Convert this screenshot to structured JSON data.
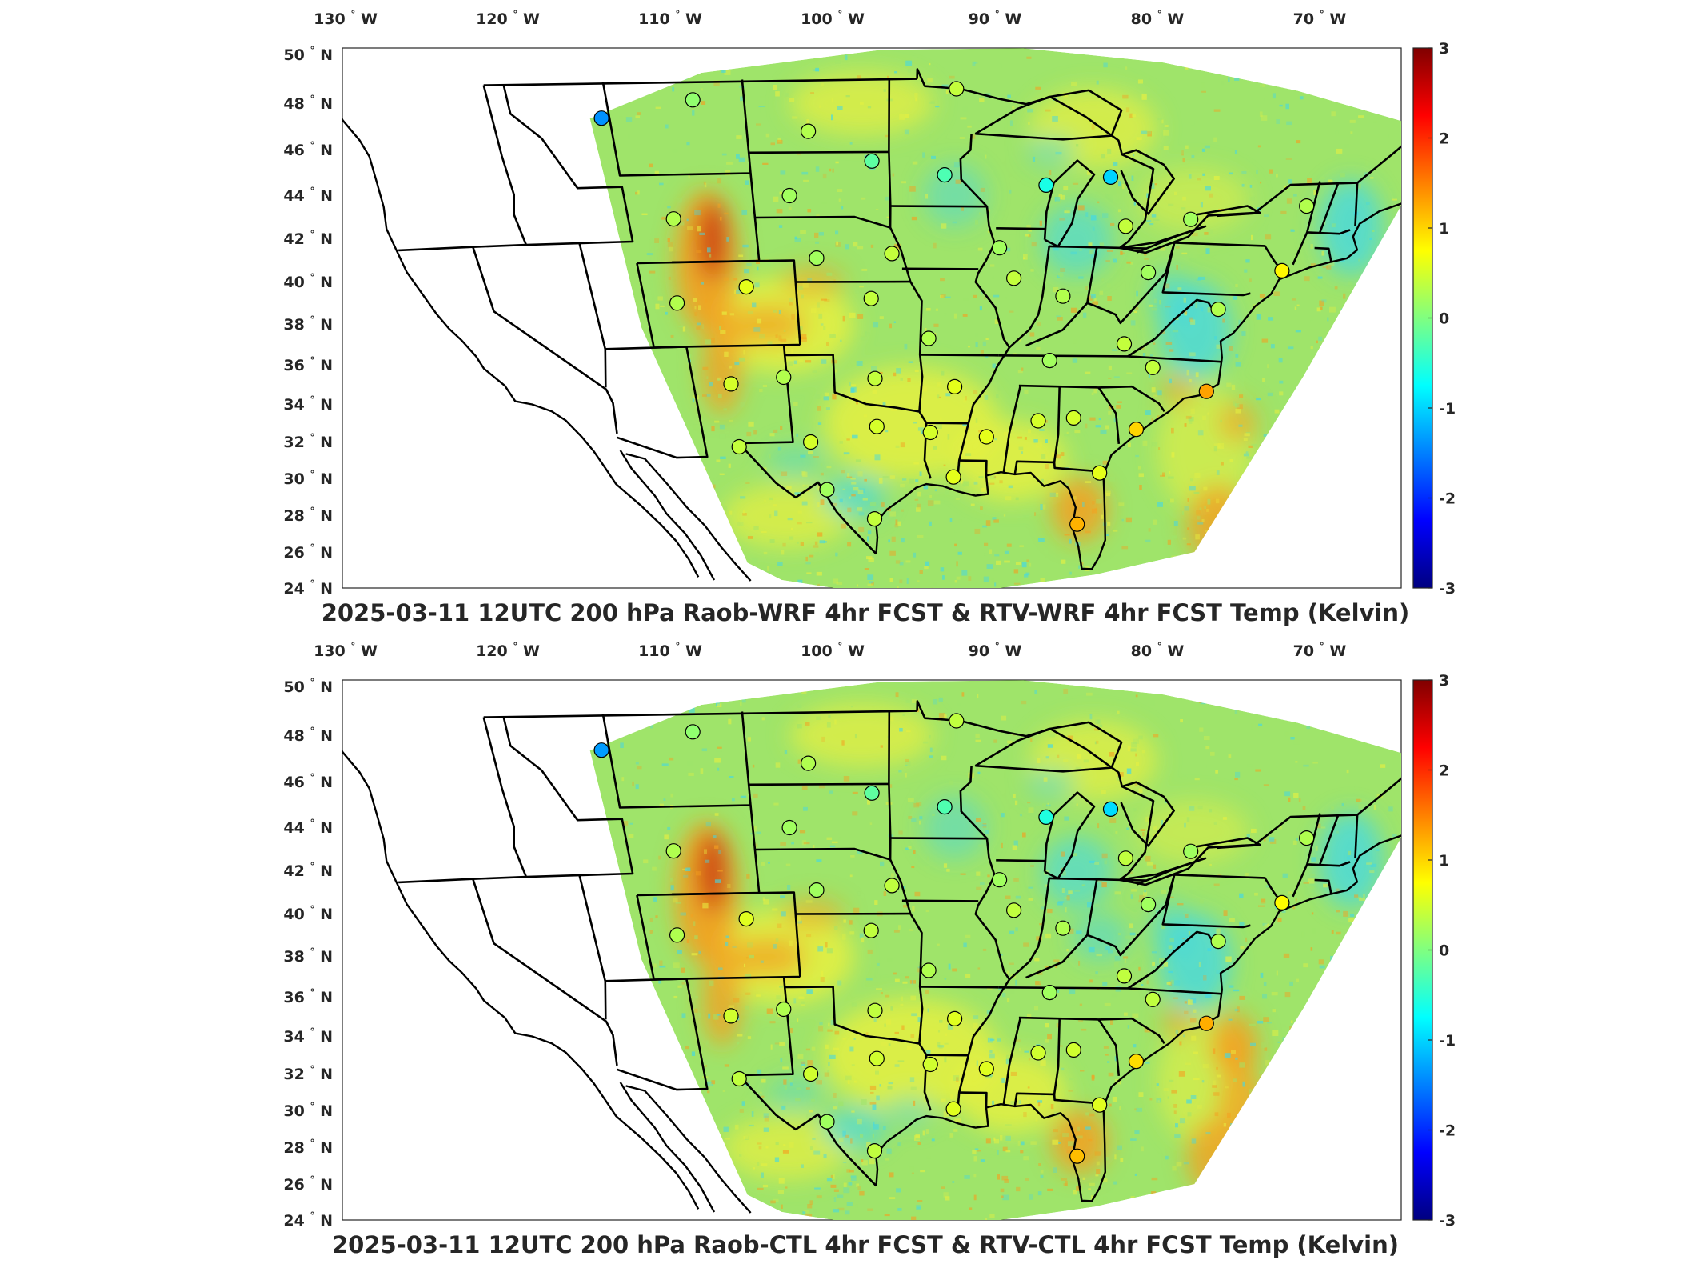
{
  "panels": [
    {
      "title": "2025-03-11 12UTC 200 hPa Raob-WRF 4hr FCST & RTV-WRF 4hr FCST Temp (Kelvin)",
      "variant": "wrf"
    },
    {
      "title": "2025-03-11 12UTC 200 hPa Raob-CTL 4hr FCST & RTV-CTL 4hr FCST Temp (Kelvin)",
      "variant": "ctl"
    }
  ],
  "lon_ticks": [
    "130",
    "120",
    "110",
    "100",
    "90",
    "80",
    "70"
  ],
  "lon_suffix": "W",
  "lat_ticks": [
    "24",
    "26",
    "28",
    "30",
    "32",
    "34",
    "36",
    "38",
    "40",
    "42",
    "44",
    "46",
    "48",
    "50"
  ],
  "lat_suffix": "N",
  "degree_symbol": "°",
  "colorbar": {
    "min": -3,
    "max": 3,
    "ticks": [
      "-3",
      "-2",
      "-1",
      "0",
      "1",
      "2",
      "3"
    ],
    "colormap": "jet",
    "colors": [
      "#000080",
      "#0000ff",
      "#0080ff",
      "#00ffff",
      "#80ff80",
      "#ffff00",
      "#ff8000",
      "#ff0000",
      "#800000"
    ]
  },
  "field_colors": {
    "background_green": "#9fe46a",
    "yellow": "#e8f040",
    "orange": "#f4a020",
    "red": "#c83010",
    "cyan": "#40d8e8"
  },
  "stations": [
    {
      "lon": -111.4,
      "lat": 47.5,
      "value": -1.4
    },
    {
      "lon": -106.6,
      "lat": 48.2,
      "value": 0.1
    },
    {
      "lon": -100.8,
      "lat": 46.8,
      "value": 0.3
    },
    {
      "lon": -97.5,
      "lat": 45.5,
      "value": -0.2
    },
    {
      "lon": -93.6,
      "lat": 44.9,
      "value": -0.3
    },
    {
      "lon": -93.2,
      "lat": 48.6,
      "value": 0.4
    },
    {
      "lon": -88.1,
      "lat": 44.5,
      "value": -0.6
    },
    {
      "lon": -84.7,
      "lat": 44.9,
      "value": -1.0
    },
    {
      "lon": -83.4,
      "lat": 42.7,
      "value": 0.4
    },
    {
      "lon": -79.9,
      "lat": 43.1,
      "value": 0.2
    },
    {
      "lon": -73.8,
      "lat": 43.9,
      "value": 0.3
    },
    {
      "lon": -102.0,
      "lat": 44.0,
      "value": 0.2
    },
    {
      "lon": -108.5,
      "lat": 43.0,
      "value": 0.3
    },
    {
      "lon": -100.7,
      "lat": 41.1,
      "value": 0.2
    },
    {
      "lon": -96.4,
      "lat": 41.3,
      "value": 0.4
    },
    {
      "lon": -90.3,
      "lat": 41.6,
      "value": 0.2
    },
    {
      "lon": -89.3,
      "lat": 40.2,
      "value": 0.4
    },
    {
      "lon": -86.3,
      "lat": 39.4,
      "value": 0.3
    },
    {
      "lon": -81.6,
      "lat": 40.6,
      "value": 0.2
    },
    {
      "lon": -77.0,
      "lat": 39.0,
      "value": 0.3
    },
    {
      "lon": -74.0,
      "lat": 40.9,
      "value": 0.8
    },
    {
      "lon": -109.1,
      "lat": 39.1,
      "value": 0.3
    },
    {
      "lon": -104.9,
      "lat": 39.8,
      "value": 0.6
    },
    {
      "lon": -97.6,
      "lat": 39.2,
      "value": 0.4
    },
    {
      "lon": -94.1,
      "lat": 37.3,
      "value": 0.3
    },
    {
      "lon": -86.5,
      "lat": 36.3,
      "value": 0.2
    },
    {
      "lon": -82.1,
      "lat": 37.2,
      "value": 0.4
    },
    {
      "lon": -80.0,
      "lat": 36.1,
      "value": 0.4
    },
    {
      "lon": -76.2,
      "lat": 35.0,
      "value": 1.3
    },
    {
      "lon": -106.6,
      "lat": 35.1,
      "value": 0.5
    },
    {
      "lon": -103.2,
      "lat": 35.4,
      "value": 0.3
    },
    {
      "lon": -97.4,
      "lat": 35.3,
      "value": 0.4
    },
    {
      "lon": -92.3,
      "lat": 34.9,
      "value": 0.6
    },
    {
      "lon": -89.9,
      "lat": 32.3,
      "value": 0.6
    },
    {
      "lon": -86.6,
      "lat": 33.2,
      "value": 0.5
    },
    {
      "lon": -84.3,
      "lat": 33.4,
      "value": 0.5
    },
    {
      "lon": -80.0,
      "lat": 32.9,
      "value": 1.0
    },
    {
      "lon": -106.7,
      "lat": 31.8,
      "value": 0.4
    },
    {
      "lon": -101.8,
      "lat": 32.0,
      "value": 0.5
    },
    {
      "lon": -97.3,
      "lat": 32.8,
      "value": 0.5
    },
    {
      "lon": -93.7,
      "lat": 32.5,
      "value": 0.5
    },
    {
      "lon": -91.9,
      "lat": 30.1,
      "value": 0.6
    },
    {
      "lon": -81.7,
      "lat": 30.5,
      "value": 0.6
    },
    {
      "lon": -82.4,
      "lat": 27.7,
      "value": 1.2
    },
    {
      "lon": -100.9,
      "lat": 29.4,
      "value": 0.2
    },
    {
      "lon": -97.5,
      "lat": 27.8,
      "value": 0.4
    }
  ]
}
